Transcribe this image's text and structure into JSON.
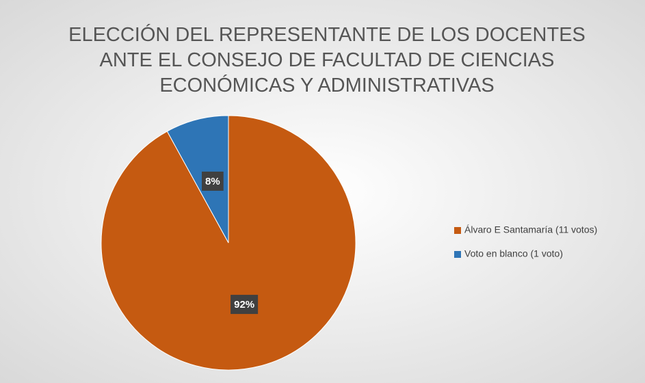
{
  "chart_data": {
    "type": "pie",
    "title": [
      "ELECCIÓN DEL REPRESENTANTE DE LOS DOCENTES",
      "ANTE EL CONSEJO DE FACULTAD DE CIENCIAS",
      "ECONÓMICAS Y ADMINISTRATIVAS"
    ],
    "categories": [
      "Álvaro E Santamaría (11 votos)",
      "Voto en blanco (1 voto)"
    ],
    "values": [
      92,
      8
    ],
    "value_labels": [
      "92%",
      "8%"
    ],
    "colors": [
      "#c55a11",
      "#2e75b6"
    ],
    "legend": "right"
  }
}
